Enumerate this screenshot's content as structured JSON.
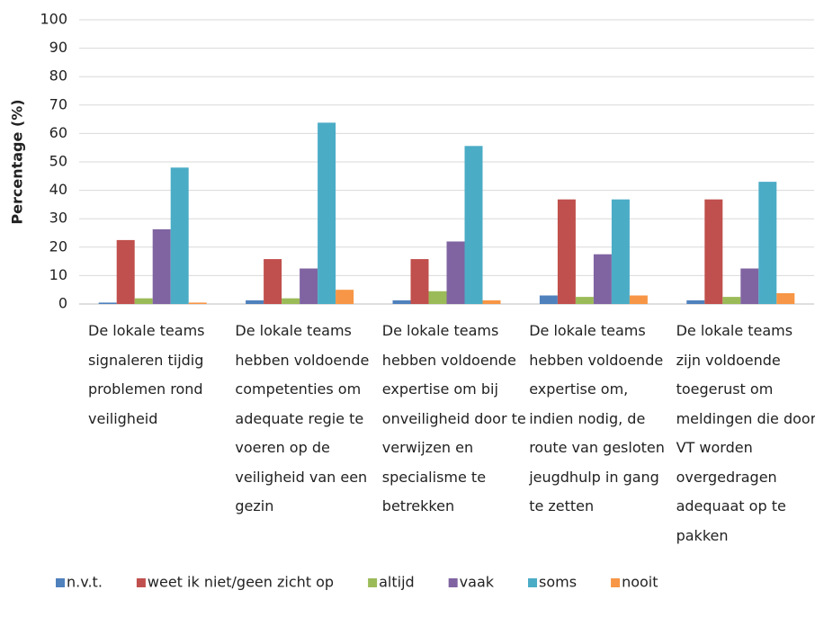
{
  "chart_data": {
    "type": "bar",
    "ylabel": "Percentage (%)",
    "categories": [
      "De lokale teams signaleren tijdig problemen rond veiligheid",
      "De lokale teams hebben voldoende competenties om adequate regie te voeren op de veiligheid van een gezin",
      "De lokale teams hebben voldoende expertise om bij onveiligheid door te verwijzen en specialisme te betrekken",
      "De lokale teams hebben voldoende expertise om, indien nodig, de route van gesloten jeugdhulp in gang te zetten",
      "De lokale teams zijn voldoende toegerust om meldingen die door VT worden overgedragen adequaat op te pakken"
    ],
    "series": [
      {
        "name": "n.v.t.",
        "color": "#4f81bd",
        "values": [
          0.5,
          1.3,
          1.3,
          3,
          1.3
        ]
      },
      {
        "name": "weet ik niet/geen zicht op",
        "color": "#c0504d",
        "values": [
          22.5,
          15.8,
          15.8,
          36.8,
          36.8
        ]
      },
      {
        "name": "altijd",
        "color": "#9bbb59",
        "values": [
          2,
          2,
          4.5,
          2.5,
          2.5
        ]
      },
      {
        "name": "vaak",
        "color": "#8064a2",
        "values": [
          26.3,
          12.5,
          22,
          17.5,
          12.5
        ]
      },
      {
        "name": "soms",
        "color": "#4bacc6",
        "values": [
          48,
          63.8,
          55.6,
          36.8,
          43
        ]
      },
      {
        "name": "nooit",
        "color": "#f79646",
        "values": [
          0.5,
          5,
          1.3,
          3,
          3.8
        ]
      }
    ],
    "ylim": [
      0,
      100
    ],
    "yticks": [
      0,
      10,
      20,
      30,
      40,
      50,
      60,
      70,
      80,
      90,
      100
    ],
    "grid": true,
    "legend": "bottom"
  }
}
